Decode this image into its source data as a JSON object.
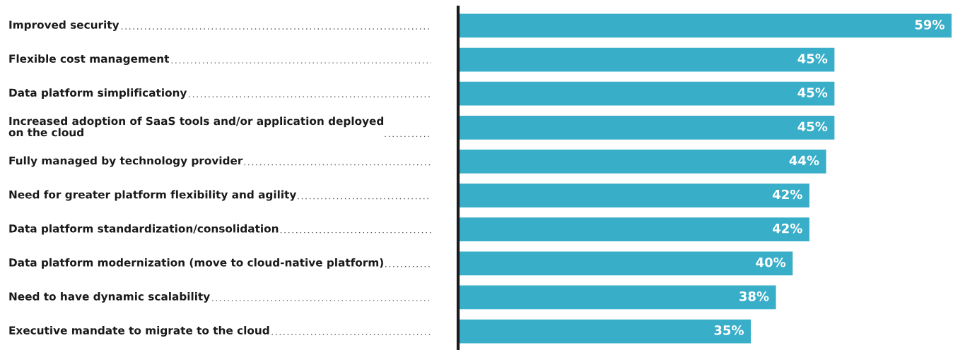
{
  "chart_data": {
    "type": "bar",
    "orientation": "horizontal",
    "categories": [
      "Improved security",
      "Flexible cost management",
      "Data platform simplificationy",
      "Increased adoption of SaaS tools and/or application deployed\non the cloud",
      "Fully managed by technology provider",
      "Need for greater platform flexibility and agility",
      "Data platform standardization/consolidation",
      "Data platform modernization (move to cloud-native platform)",
      "Need to have dynamic scalability",
      "Executive mandate to migrate to the cloud"
    ],
    "values": [
      59,
      45,
      45,
      45,
      44,
      42,
      42,
      40,
      38,
      35
    ],
    "value_labels": [
      "59%",
      "45%",
      "45%",
      "45%",
      "44%",
      "42%",
      "42%",
      "40%",
      "38%",
      "35%"
    ],
    "color": "#38aec8"
  }
}
